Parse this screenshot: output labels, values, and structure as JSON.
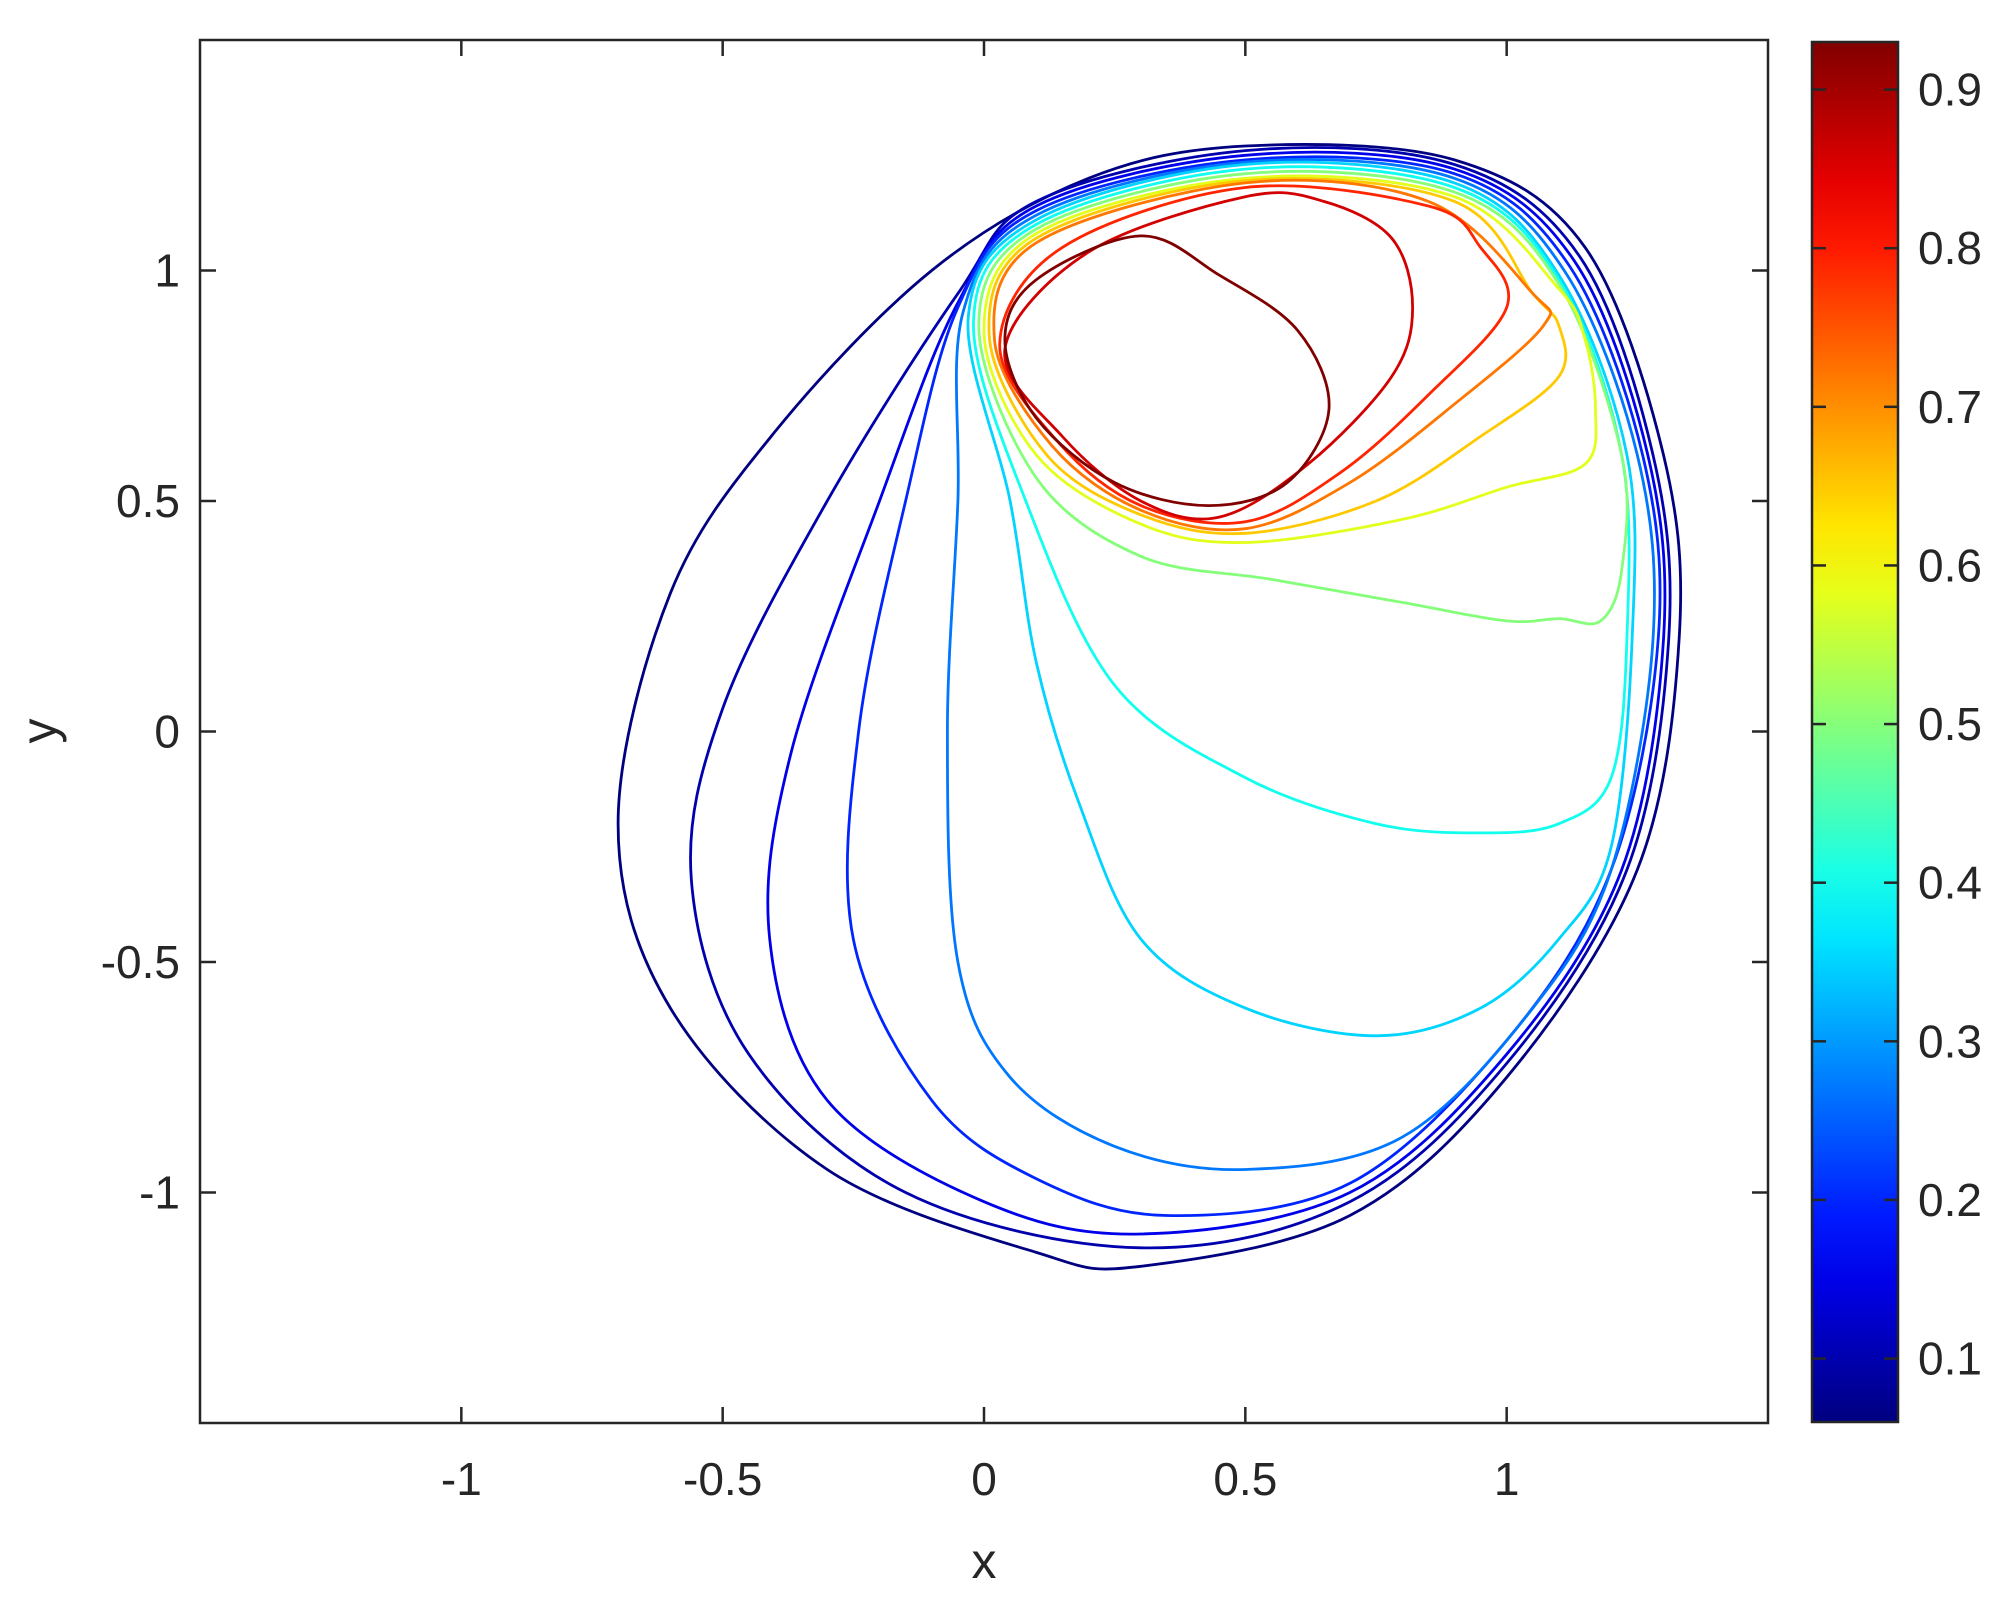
{
  "chart_data": {
    "type": "contour",
    "title": "",
    "xlabel": "x",
    "ylabel": "y",
    "xlim": [
      -1.5,
      1.5
    ],
    "ylim": [
      -1.5,
      1.5
    ],
    "x_ticks": [
      -1,
      -0.5,
      0,
      0.5,
      1
    ],
    "x_tick_labels": [
      "-1",
      "-0.5",
      "0",
      "0.5",
      "1"
    ],
    "y_ticks": [
      1,
      0.5,
      0,
      -0.5,
      -1
    ],
    "y_tick_labels": [
      "1",
      "0.5",
      "0",
      "-0.5",
      "-1"
    ],
    "grid": false,
    "colormap": "jet",
    "colorbar": {
      "range": [
        0.06,
        0.93
      ],
      "ticks": [
        0.9,
        0.8,
        0.7,
        0.6,
        0.5,
        0.4,
        0.3,
        0.2,
        0.1
      ],
      "tick_labels": [
        "0.9",
        "0.8",
        "0.7",
        "0.6",
        "0.5",
        "0.4",
        "0.3",
        "0.2",
        "0.1"
      ]
    },
    "contours": [
      {
        "level": 0.06,
        "points": [
          [
            0.5,
            1.27
          ],
          [
            0.2,
            1.2
          ],
          [
            -0.1,
            1.0
          ],
          [
            -0.4,
            0.65
          ],
          [
            -0.6,
            0.3
          ],
          [
            -0.7,
            -0.2
          ],
          [
            -0.6,
            -0.6
          ],
          [
            -0.3,
            -0.95
          ],
          [
            0.1,
            -1.13
          ],
          [
            0.3,
            -1.16
          ],
          [
            0.7,
            -1.05
          ],
          [
            1.0,
            -0.75
          ],
          [
            1.25,
            -0.3
          ],
          [
            1.33,
            0.2
          ],
          [
            1.3,
            0.6
          ],
          [
            1.15,
            1.05
          ],
          [
            0.9,
            1.24
          ],
          [
            0.5,
            1.27
          ]
        ]
      },
      {
        "level": 0.1,
        "points": [
          [
            0.5,
            1.26
          ],
          [
            0.1,
            1.15
          ],
          [
            -0.05,
            0.95
          ],
          [
            -0.3,
            0.5
          ],
          [
            -0.5,
            0.05
          ],
          [
            -0.56,
            -0.32
          ],
          [
            -0.45,
            -0.7
          ],
          [
            -0.15,
            -1.0
          ],
          [
            0.3,
            -1.12
          ],
          [
            0.7,
            -1.02
          ],
          [
            1.0,
            -0.72
          ],
          [
            1.23,
            -0.3
          ],
          [
            1.31,
            0.2
          ],
          [
            1.28,
            0.6
          ],
          [
            1.14,
            1.03
          ],
          [
            0.9,
            1.23
          ],
          [
            0.5,
            1.26
          ]
        ]
      },
      {
        "level": 0.15,
        "points": [
          [
            0.5,
            1.25
          ],
          [
            0.1,
            1.14
          ],
          [
            -0.05,
            0.93
          ],
          [
            -0.2,
            0.5
          ],
          [
            -0.37,
            -0.05
          ],
          [
            -0.41,
            -0.45
          ],
          [
            -0.3,
            -0.8
          ],
          [
            0.0,
            -1.02
          ],
          [
            0.3,
            -1.09
          ],
          [
            0.7,
            -1.0
          ],
          [
            1.0,
            -0.7
          ],
          [
            1.22,
            -0.3
          ],
          [
            1.3,
            0.2
          ],
          [
            1.27,
            0.6
          ],
          [
            1.13,
            1.02
          ],
          [
            0.9,
            1.22
          ],
          [
            0.5,
            1.25
          ]
        ]
      },
      {
        "level": 0.2,
        "points": [
          [
            0.5,
            1.24
          ],
          [
            0.1,
            1.13
          ],
          [
            -0.05,
            0.92
          ],
          [
            -0.15,
            0.5
          ],
          [
            -0.24,
            0.0
          ],
          [
            -0.25,
            -0.45
          ],
          [
            -0.1,
            -0.8
          ],
          [
            0.1,
            -0.97
          ],
          [
            0.35,
            -1.05
          ],
          [
            0.7,
            -0.98
          ],
          [
            1.0,
            -0.67
          ],
          [
            1.2,
            -0.3
          ],
          [
            1.29,
            0.2
          ],
          [
            1.26,
            0.6
          ],
          [
            1.12,
            1.01
          ],
          [
            0.9,
            1.21
          ],
          [
            0.5,
            1.24
          ]
        ]
      },
      {
        "level": 0.27,
        "points": [
          [
            0.5,
            1.235
          ],
          [
            0.1,
            1.12
          ],
          [
            -0.04,
            0.91
          ],
          [
            -0.05,
            0.5
          ],
          [
            -0.07,
            0.0
          ],
          [
            -0.05,
            -0.5
          ],
          [
            0.05,
            -0.75
          ],
          [
            0.25,
            -0.9
          ],
          [
            0.5,
            -0.95
          ],
          [
            0.8,
            -0.88
          ],
          [
            1.05,
            -0.6
          ],
          [
            1.2,
            -0.3
          ],
          [
            1.28,
            0.2
          ],
          [
            1.25,
            0.6
          ],
          [
            1.11,
            1.0
          ],
          [
            0.9,
            1.2
          ],
          [
            0.5,
            1.235
          ]
        ]
      },
      {
        "level": 0.35,
        "points": [
          [
            0.5,
            1.23
          ],
          [
            0.1,
            1.11
          ],
          [
            -0.03,
            0.9
          ],
          [
            0.05,
            0.5
          ],
          [
            0.1,
            0.15
          ],
          [
            0.18,
            -0.15
          ],
          [
            0.3,
            -0.45
          ],
          [
            0.5,
            -0.6
          ],
          [
            0.75,
            -0.66
          ],
          [
            0.95,
            -0.6
          ],
          [
            1.1,
            -0.45
          ],
          [
            1.2,
            -0.25
          ],
          [
            1.24,
            0.2
          ],
          [
            1.23,
            0.6
          ],
          [
            1.1,
            0.99
          ],
          [
            0.9,
            1.19
          ],
          [
            0.5,
            1.23
          ]
        ]
      },
      {
        "level": 0.4,
        "points": [
          [
            0.5,
            1.22
          ],
          [
            0.1,
            1.1
          ],
          [
            -0.02,
            0.89
          ],
          [
            0.08,
            0.5
          ],
          [
            0.25,
            0.1
          ],
          [
            0.5,
            -0.1
          ],
          [
            0.75,
            -0.2
          ],
          [
            0.95,
            -0.22
          ],
          [
            1.1,
            -0.2
          ],
          [
            1.2,
            -0.1
          ],
          [
            1.23,
            0.2
          ],
          [
            1.22,
            0.6
          ],
          [
            1.1,
            0.98
          ],
          [
            0.9,
            1.18
          ],
          [
            0.5,
            1.22
          ]
        ]
      },
      {
        "level": 0.5,
        "points": [
          [
            0.5,
            1.21
          ],
          [
            0.1,
            1.09
          ],
          [
            -0.01,
            0.88
          ],
          [
            0.1,
            0.55
          ],
          [
            0.3,
            0.38
          ],
          [
            0.55,
            0.33
          ],
          [
            0.8,
            0.28
          ],
          [
            1.0,
            0.24
          ],
          [
            1.1,
            0.245
          ],
          [
            1.18,
            0.24
          ],
          [
            1.22,
            0.35
          ],
          [
            1.22,
            0.6
          ],
          [
            1.1,
            0.97
          ],
          [
            0.9,
            1.17
          ],
          [
            0.5,
            1.21
          ]
        ]
      },
      {
        "level": 0.58,
        "points": [
          [
            0.5,
            1.2
          ],
          [
            0.1,
            1.08
          ],
          [
            0.0,
            0.87
          ],
          [
            0.1,
            0.6
          ],
          [
            0.3,
            0.45
          ],
          [
            0.5,
            0.41
          ],
          [
            0.8,
            0.46
          ],
          [
            1.0,
            0.53
          ],
          [
            1.15,
            0.58
          ],
          [
            1.17,
            0.7
          ],
          [
            1.15,
            0.85
          ],
          [
            1.1,
            0.96
          ],
          [
            0.9,
            1.16
          ],
          [
            0.5,
            1.2
          ]
        ]
      },
      {
        "level": 0.65,
        "points": [
          [
            0.5,
            1.195
          ],
          [
            0.1,
            1.07
          ],
          [
            0.01,
            0.86
          ],
          [
            0.12,
            0.6
          ],
          [
            0.3,
            0.47
          ],
          [
            0.5,
            0.43
          ],
          [
            0.75,
            0.5
          ],
          [
            0.95,
            0.64
          ],
          [
            1.1,
            0.77
          ],
          [
            1.1,
            0.88
          ],
          [
            1.05,
            0.95
          ],
          [
            0.9,
            1.15
          ],
          [
            0.5,
            1.195
          ]
        ]
      },
      {
        "level": 0.72,
        "points": [
          [
            0.5,
            1.19
          ],
          [
            0.1,
            1.06
          ],
          [
            0.02,
            0.85
          ],
          [
            0.13,
            0.62
          ],
          [
            0.3,
            0.48
          ],
          [
            0.5,
            0.44
          ],
          [
            0.7,
            0.54
          ],
          [
            0.9,
            0.71
          ],
          [
            1.07,
            0.88
          ],
          [
            1.05,
            0.95
          ],
          [
            0.85,
            1.15
          ],
          [
            0.5,
            1.19
          ]
        ]
      },
      {
        "level": 0.79,
        "points": [
          [
            0.5,
            1.18
          ],
          [
            0.15,
            1.05
          ],
          [
            0.03,
            0.84
          ],
          [
            0.14,
            0.63
          ],
          [
            0.3,
            0.49
          ],
          [
            0.5,
            0.455
          ],
          [
            0.68,
            0.56
          ],
          [
            0.85,
            0.73
          ],
          [
            1.0,
            0.92
          ],
          [
            0.95,
            1.05
          ],
          [
            0.85,
            1.14
          ],
          [
            0.5,
            1.18
          ]
        ]
      },
      {
        "level": 0.86,
        "points": [
          [
            0.5,
            1.16
          ],
          [
            0.2,
            1.04
          ],
          [
            0.04,
            0.83
          ],
          [
            0.15,
            0.64
          ],
          [
            0.3,
            0.5
          ],
          [
            0.45,
            0.465
          ],
          [
            0.62,
            0.58
          ],
          [
            0.78,
            0.77
          ],
          [
            0.82,
            0.92
          ],
          [
            0.78,
            1.07
          ],
          [
            0.65,
            1.15
          ],
          [
            0.5,
            1.16
          ]
        ]
      },
      {
        "level": 0.93,
        "points": [
          [
            0.3,
            1.075
          ],
          [
            0.1,
            0.98
          ],
          [
            0.04,
            0.85
          ],
          [
            0.1,
            0.68
          ],
          [
            0.25,
            0.54
          ],
          [
            0.43,
            0.49
          ],
          [
            0.58,
            0.54
          ],
          [
            0.66,
            0.7
          ],
          [
            0.6,
            0.87
          ],
          [
            0.45,
            0.99
          ],
          [
            0.3,
            1.075
          ]
        ]
      }
    ]
  }
}
